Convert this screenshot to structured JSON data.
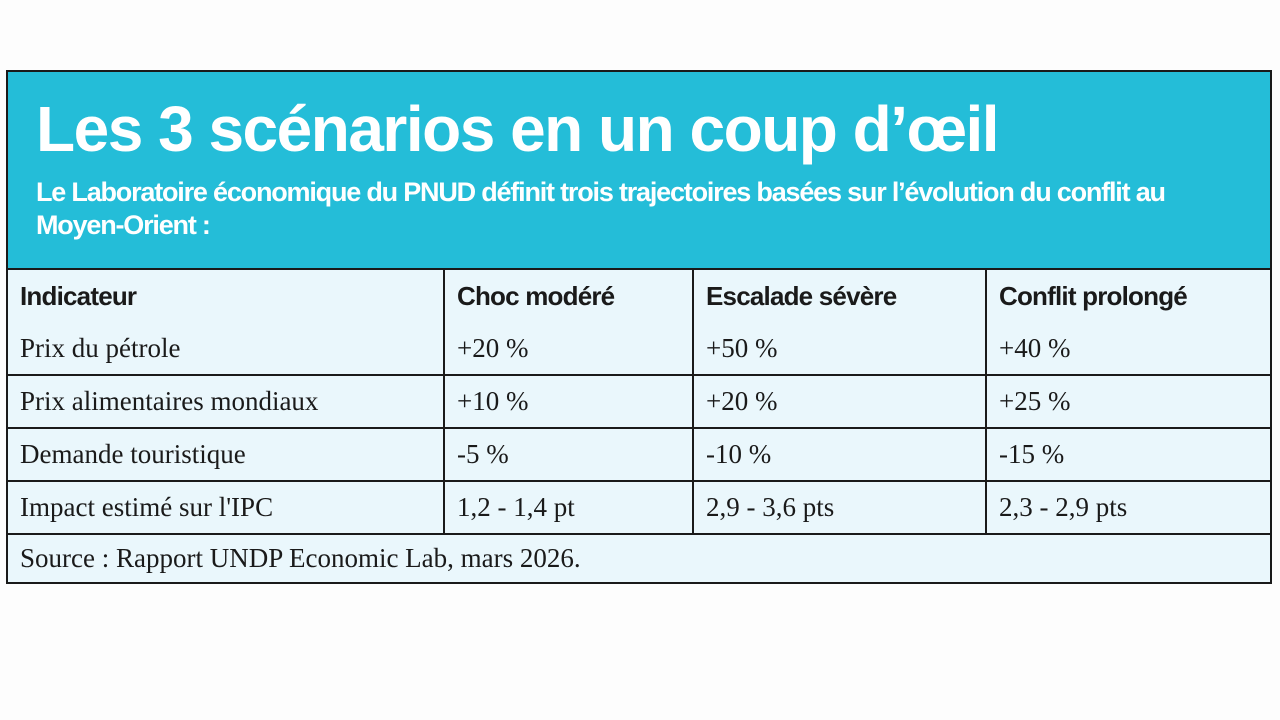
{
  "header": {
    "title": "Les 3 scénarios en un coup d’œil",
    "subtitle": "Le Laboratoire économique du PNUD définit trois trajectoires basées sur l’évolution du conflit au Moyen-Orient :"
  },
  "colors": {
    "header_bg": "#24bdd8",
    "cell_bg": "#eaf7fc",
    "border": "#1a1a1a"
  },
  "table": {
    "columns": [
      "Indicateur",
      "Choc modéré",
      "Escalade sévère",
      "Conflit prolongé"
    ],
    "rows": [
      [
        "Prix du pétrole",
        "+20 %",
        "+50 %",
        "+40 %"
      ],
      [
        "Prix alimentaires mondiaux",
        "+10 %",
        "+20 %",
        "+25 %"
      ],
      [
        "Demande touristique",
        "-5 %",
        "-10 %",
        "-15 %"
      ],
      [
        "Impact estimé sur l'IPC",
        "1,2 - 1,4 pt",
        "2,9 - 3,6 pts",
        "2,3 - 2,9 pts"
      ]
    ],
    "source": "Source : Rapport UNDP Economic Lab, mars 2026."
  }
}
